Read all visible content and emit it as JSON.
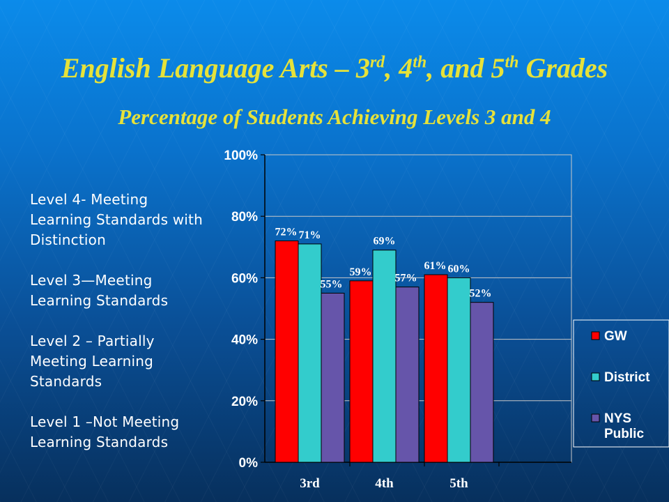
{
  "slide": {
    "title_main": "English Language Arts – 3",
    "title_sup1": "rd",
    "title_part2": ", 4",
    "title_sup2": "th",
    "title_part3": ", and 5",
    "title_sup3": "th",
    "title_part4": " Grades",
    "subtitle": "Percentage of Students Achieving Levels 3 and 4",
    "levels": [
      "Level 4- Meeting Learning Standards with Distinction",
      "Level 3—Meeting Learning Standards",
      "Level 2 – Partially Meeting Learning Standards",
      "Level 1 –Not Meeting Learning Standards"
    ]
  },
  "chart_data": {
    "type": "bar",
    "categories": [
      "3rd",
      "4th",
      "5th"
    ],
    "series": [
      {
        "name": "GW",
        "values": [
          72,
          59,
          61
        ],
        "labels": [
          "72%",
          "59%",
          "61%"
        ],
        "color": "#ff0000"
      },
      {
        "name": "District",
        "values": [
          71,
          69,
          60
        ],
        "labels": [
          "71%",
          "69%",
          "60%"
        ],
        "color": "#33cccc"
      },
      {
        "name": "NYS Public",
        "values": [
          55,
          57,
          52
        ],
        "labels": [
          "55%",
          "57%",
          "52%"
        ],
        "color": "#6655aa"
      }
    ],
    "yticks": [
      "0%",
      "20%",
      "40%",
      "60%",
      "80%",
      "100%"
    ],
    "ylim": [
      0,
      100
    ],
    "grid": true,
    "legend": "right"
  }
}
